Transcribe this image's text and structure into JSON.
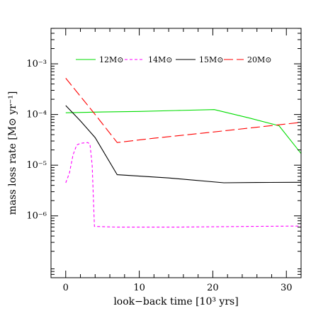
{
  "chart_data": {
    "type": "line",
    "xlabel": "look−back time [10³ yrs]",
    "ylabel": "mass loss rate  [M⊙ yr⁻¹]",
    "xlim": [
      -2,
      32
    ],
    "ylim_log10": [
      -7.22,
      -2.3
    ],
    "yscale": "log",
    "x_ticks": [
      0,
      10,
      20,
      30
    ],
    "y_ticks": [
      {
        "exp": -3,
        "label": "10⁻³"
      },
      {
        "exp": -4,
        "label": "10⁻⁴"
      },
      {
        "exp": -5,
        "label": "10⁻⁵"
      },
      {
        "exp": -6,
        "label": "10⁻⁶"
      }
    ],
    "legend_position": "top",
    "series": [
      {
        "name": "12M⊙",
        "color": "#00dd00",
        "dash": "solid",
        "x": [
          0,
          5,
          10,
          15,
          20.2,
          25,
          29,
          32
        ],
        "y": [
          0.000108,
          0.000112,
          0.000115,
          0.00012,
          0.000125,
          8.5e-05,
          6e-05,
          1.7e-05
        ]
      },
      {
        "name": "14M⊙",
        "color": "#ff00ff",
        "dash": "short",
        "x": [
          0,
          0.5,
          1.0,
          1.5,
          2.0,
          2.5,
          3.0,
          3.3,
          3.6,
          3.9,
          7,
          15,
          20,
          25,
          32
        ],
        "y": [
          4.5e-06,
          7e-06,
          1.6e-05,
          2.5e-05,
          2.7e-05,
          2.75e-05,
          2.8e-05,
          2.6e-05,
          1e-05,
          6.2e-07,
          6e-07,
          6e-07,
          6.1e-07,
          6.2e-07,
          6.3e-07
        ]
      },
      {
        "name": "15M⊙",
        "color": "#000000",
        "dash": "solid",
        "x": [
          0,
          2,
          4,
          7,
          14,
          21.5,
          26,
          32
        ],
        "y": [
          0.00015,
          7.5e-05,
          3.5e-05,
          6.5e-06,
          5.6e-06,
          4.5e-06,
          4.55e-06,
          4.6e-06
        ]
      },
      {
        "name": "20M⊙",
        "color": "#ff0000",
        "dash": "long",
        "x": [
          0,
          4,
          7,
          12,
          20,
          26,
          32
        ],
        "y": [
          0.00052,
          0.0001,
          2.8e-05,
          3.4e-05,
          4.5e-05,
          5.6e-05,
          7e-05
        ]
      }
    ]
  }
}
